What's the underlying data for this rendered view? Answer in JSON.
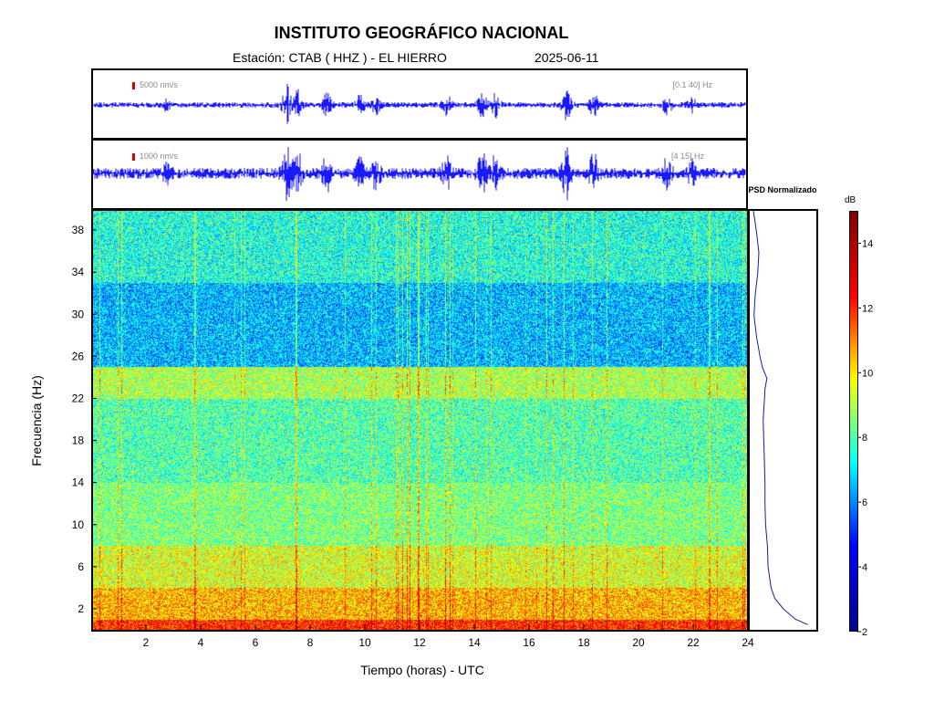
{
  "header": {
    "title": "INSTITUTO GEOGRÁFICO NACIONAL",
    "station": "Estación:  CTAB ( HHZ ) - EL HIERRO",
    "date": "2025-06-11"
  },
  "colors": {
    "trace": "#1a1aff",
    "scale_bar": "#e00000",
    "psd_line": "#1a1aa8",
    "colormap": [
      "#00008f",
      "#0000ff",
      "#00ffff",
      "#ffff00",
      "#ff0000",
      "#800000"
    ]
  },
  "seismogram_top": {
    "scale": "5000 nm/s",
    "band": "[0.1 40] Hz"
  },
  "seismogram_bottom": {
    "scale": "1000 nm/s",
    "band": "[4 15] Hz"
  },
  "chart_data": [
    {
      "type": "heatmap",
      "title": "",
      "xlabel": "Tiempo (horas) - UTC",
      "ylabel": "Frecuencia  (Hz)",
      "xlim": [
        0,
        24
      ],
      "ylim": [
        0,
        40
      ],
      "xticks": [
        2,
        4,
        6,
        8,
        10,
        12,
        14,
        16,
        18,
        20,
        22,
        24
      ],
      "yticks": [
        2,
        6,
        10,
        14,
        18,
        22,
        26,
        30,
        34,
        38
      ],
      "approx_band_power_db": [
        {
          "freq_range_hz": [
            0,
            1
          ],
          "db": 12
        },
        {
          "freq_range_hz": [
            1,
            4
          ],
          "db": 10.5
        },
        {
          "freq_range_hz": [
            4,
            8
          ],
          "db": 9.5
        },
        {
          "freq_range_hz": [
            8,
            14
          ],
          "db": 8.5
        },
        {
          "freq_range_hz": [
            14,
            22
          ],
          "db": 8
        },
        {
          "freq_range_hz": [
            22,
            25
          ],
          "db": 9
        },
        {
          "freq_range_hz": [
            25,
            33
          ],
          "db": 6.5
        },
        {
          "freq_range_hz": [
            33,
            40
          ],
          "db": 7.5
        }
      ]
    },
    {
      "type": "line",
      "title": "PSD Normalizado",
      "profile_y_hz": [
        0.5,
        1,
        2,
        3,
        4,
        6,
        8,
        10,
        12,
        14,
        16,
        18,
        20,
        22,
        23,
        24,
        25,
        26,
        28,
        30,
        32,
        34,
        36,
        38,
        40
      ],
      "profile_x_norm": [
        0.92,
        0.72,
        0.52,
        0.38,
        0.32,
        0.27,
        0.26,
        0.23,
        0.22,
        0.22,
        0.21,
        0.2,
        0.19,
        0.21,
        0.22,
        0.25,
        0.18,
        0.14,
        0.08,
        0.04,
        0.06,
        0.1,
        0.12,
        0.08,
        0.03
      ]
    },
    {
      "type": "heatmap",
      "title": "dB",
      "colorbar_range": [
        2,
        15
      ],
      "ticks": [
        2,
        4,
        6,
        8,
        10,
        12,
        14
      ]
    }
  ]
}
